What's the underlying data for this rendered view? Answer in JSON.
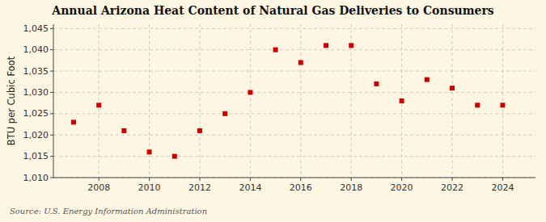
{
  "chart_data": {
    "type": "scatter",
    "title": "Annual Arizona Heat Content of Natural Gas Deliveries to Consumers",
    "ylabel": "BTU per Cubic Foot",
    "annotation": "Source: U.S. Energy Information Administration",
    "x": [
      2007,
      2008,
      2009,
      2010,
      2011,
      2012,
      2013,
      2014,
      2015,
      2016,
      2017,
      2018,
      2019,
      2020,
      2021,
      2022,
      2023,
      2024
    ],
    "values": [
      1023,
      1027,
      1021,
      1016,
      1015,
      1021,
      1025,
      1030,
      1040,
      1037,
      1041,
      1041,
      1032,
      1028,
      1033,
      1031,
      1027,
      1027
    ],
    "color": "#cc0000",
    "marker": "square",
    "xlim": [
      2006.2,
      2025.3
    ],
    "xticks": [
      2008,
      2010,
      2012,
      2014,
      2016,
      2018,
      2020,
      2022,
      2024
    ],
    "ylim": [
      1010,
      1046
    ],
    "yticks": [
      {
        "value": 1010,
        "label": "1,010"
      },
      {
        "value": 1015,
        "label": "1,015"
      },
      {
        "value": 1020,
        "label": "1,020"
      },
      {
        "value": 1025,
        "label": "1,025"
      },
      {
        "value": 1030,
        "label": "1,030"
      },
      {
        "value": 1035,
        "label": "1,035"
      },
      {
        "value": 1040,
        "label": "1,040"
      },
      {
        "value": 1045,
        "label": "1,045"
      }
    ],
    "grid": true
  }
}
